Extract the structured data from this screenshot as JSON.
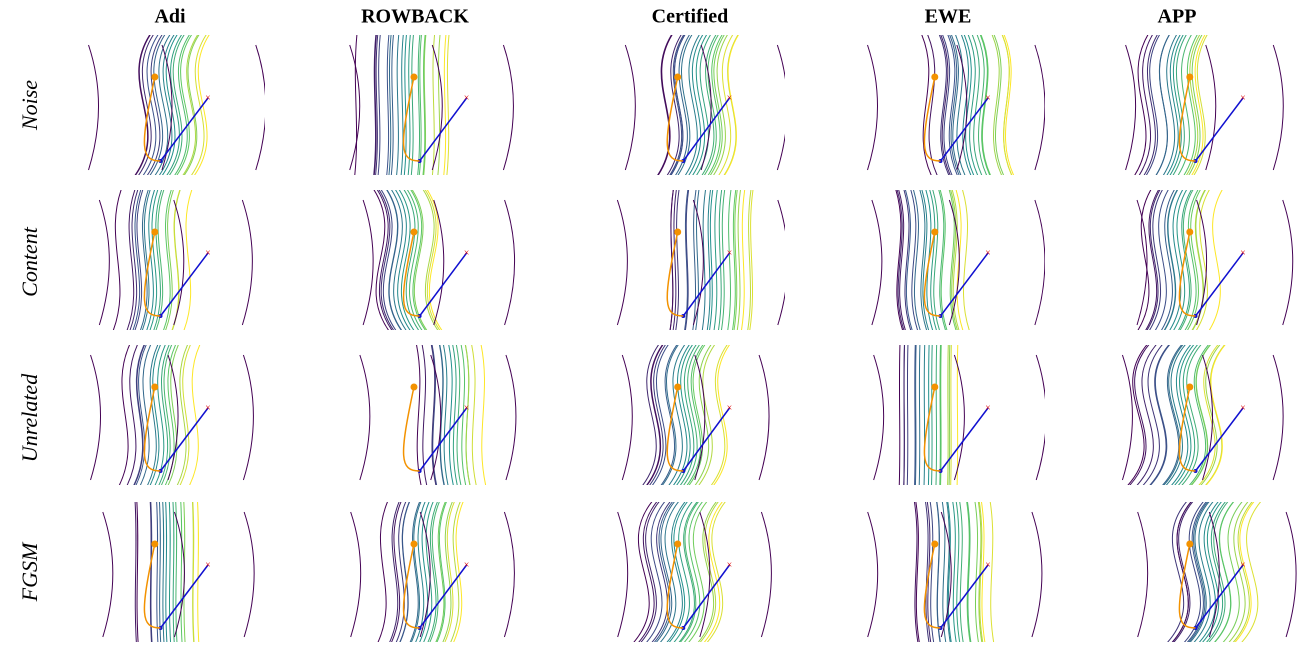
{
  "columns": [
    "Adi",
    "ROWBACK",
    "Certified",
    "EWE",
    "APP"
  ],
  "rows": [
    "Noise",
    "Content",
    "Unrelated",
    "FGSM"
  ]
}
